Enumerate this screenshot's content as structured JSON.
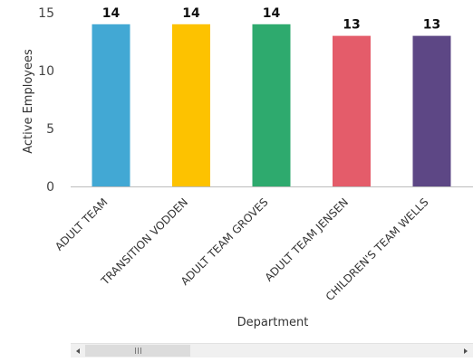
{
  "chart_data": {
    "type": "bar",
    "title": "",
    "xlabel": "Department",
    "ylabel": "Active Employees",
    "ylim": [
      0,
      15
    ],
    "yticks": [
      0,
      5,
      10,
      15
    ],
    "categories": [
      "ADULT TEAM",
      "TRANSITION VODDEN",
      "ADULT TEAM GROVES",
      "ADULT TEAM JENSEN",
      "CHILDREN'S TEAM WELLS"
    ],
    "values": [
      14,
      14,
      14,
      13,
      13
    ],
    "colors": [
      "#42a8d4",
      "#fdc200",
      "#2eaa6e",
      "#e45c6a",
      "#5d4785"
    ],
    "grid": false,
    "legend": "none"
  }
}
